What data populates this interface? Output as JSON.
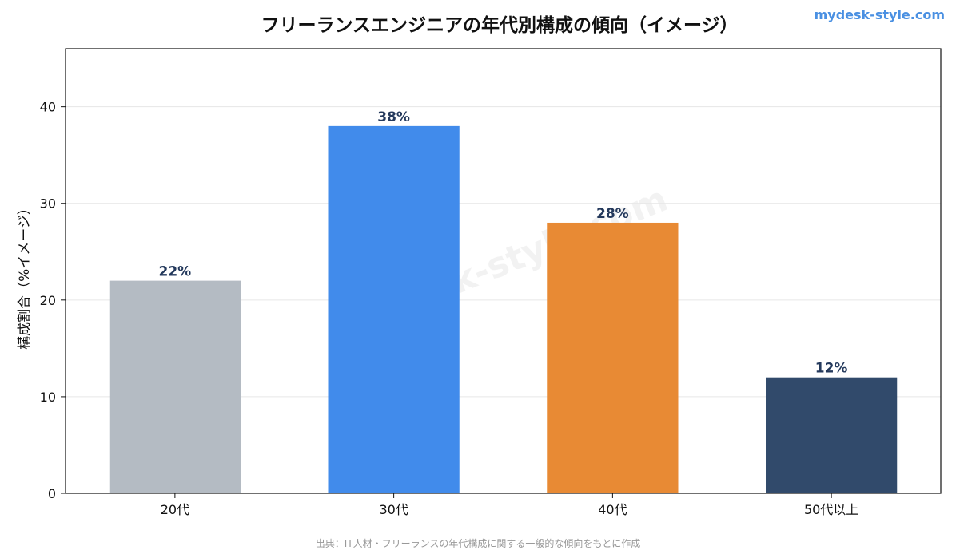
{
  "brand": {
    "site": "mydesk-style.com",
    "watermark": "mydesk-style.com",
    "color": "#4A90E2"
  },
  "source_note": "出典：IT人材・フリーランスの年代構成に関する一般的な傾向をもとに作成",
  "chart_data": {
    "type": "bar",
    "title": "フリーランスエンジニアの年代別構成の傾向（イメージ）",
    "xlabel": "",
    "ylabel": "構成割合（%イメージ）",
    "categories": [
      "20代",
      "30代",
      "40代",
      "50代以上"
    ],
    "values": [
      22,
      38,
      28,
      12
    ],
    "data_labels": [
      "22%",
      "38%",
      "28%",
      "12%"
    ],
    "colors": [
      "#B4BBC3",
      "#418BEB",
      "#E88A34",
      "#314A6B"
    ],
    "ylim": [
      0,
      46
    ],
    "yticks": [
      0,
      10,
      20,
      30,
      40
    ],
    "grid": true,
    "legend": "none"
  }
}
